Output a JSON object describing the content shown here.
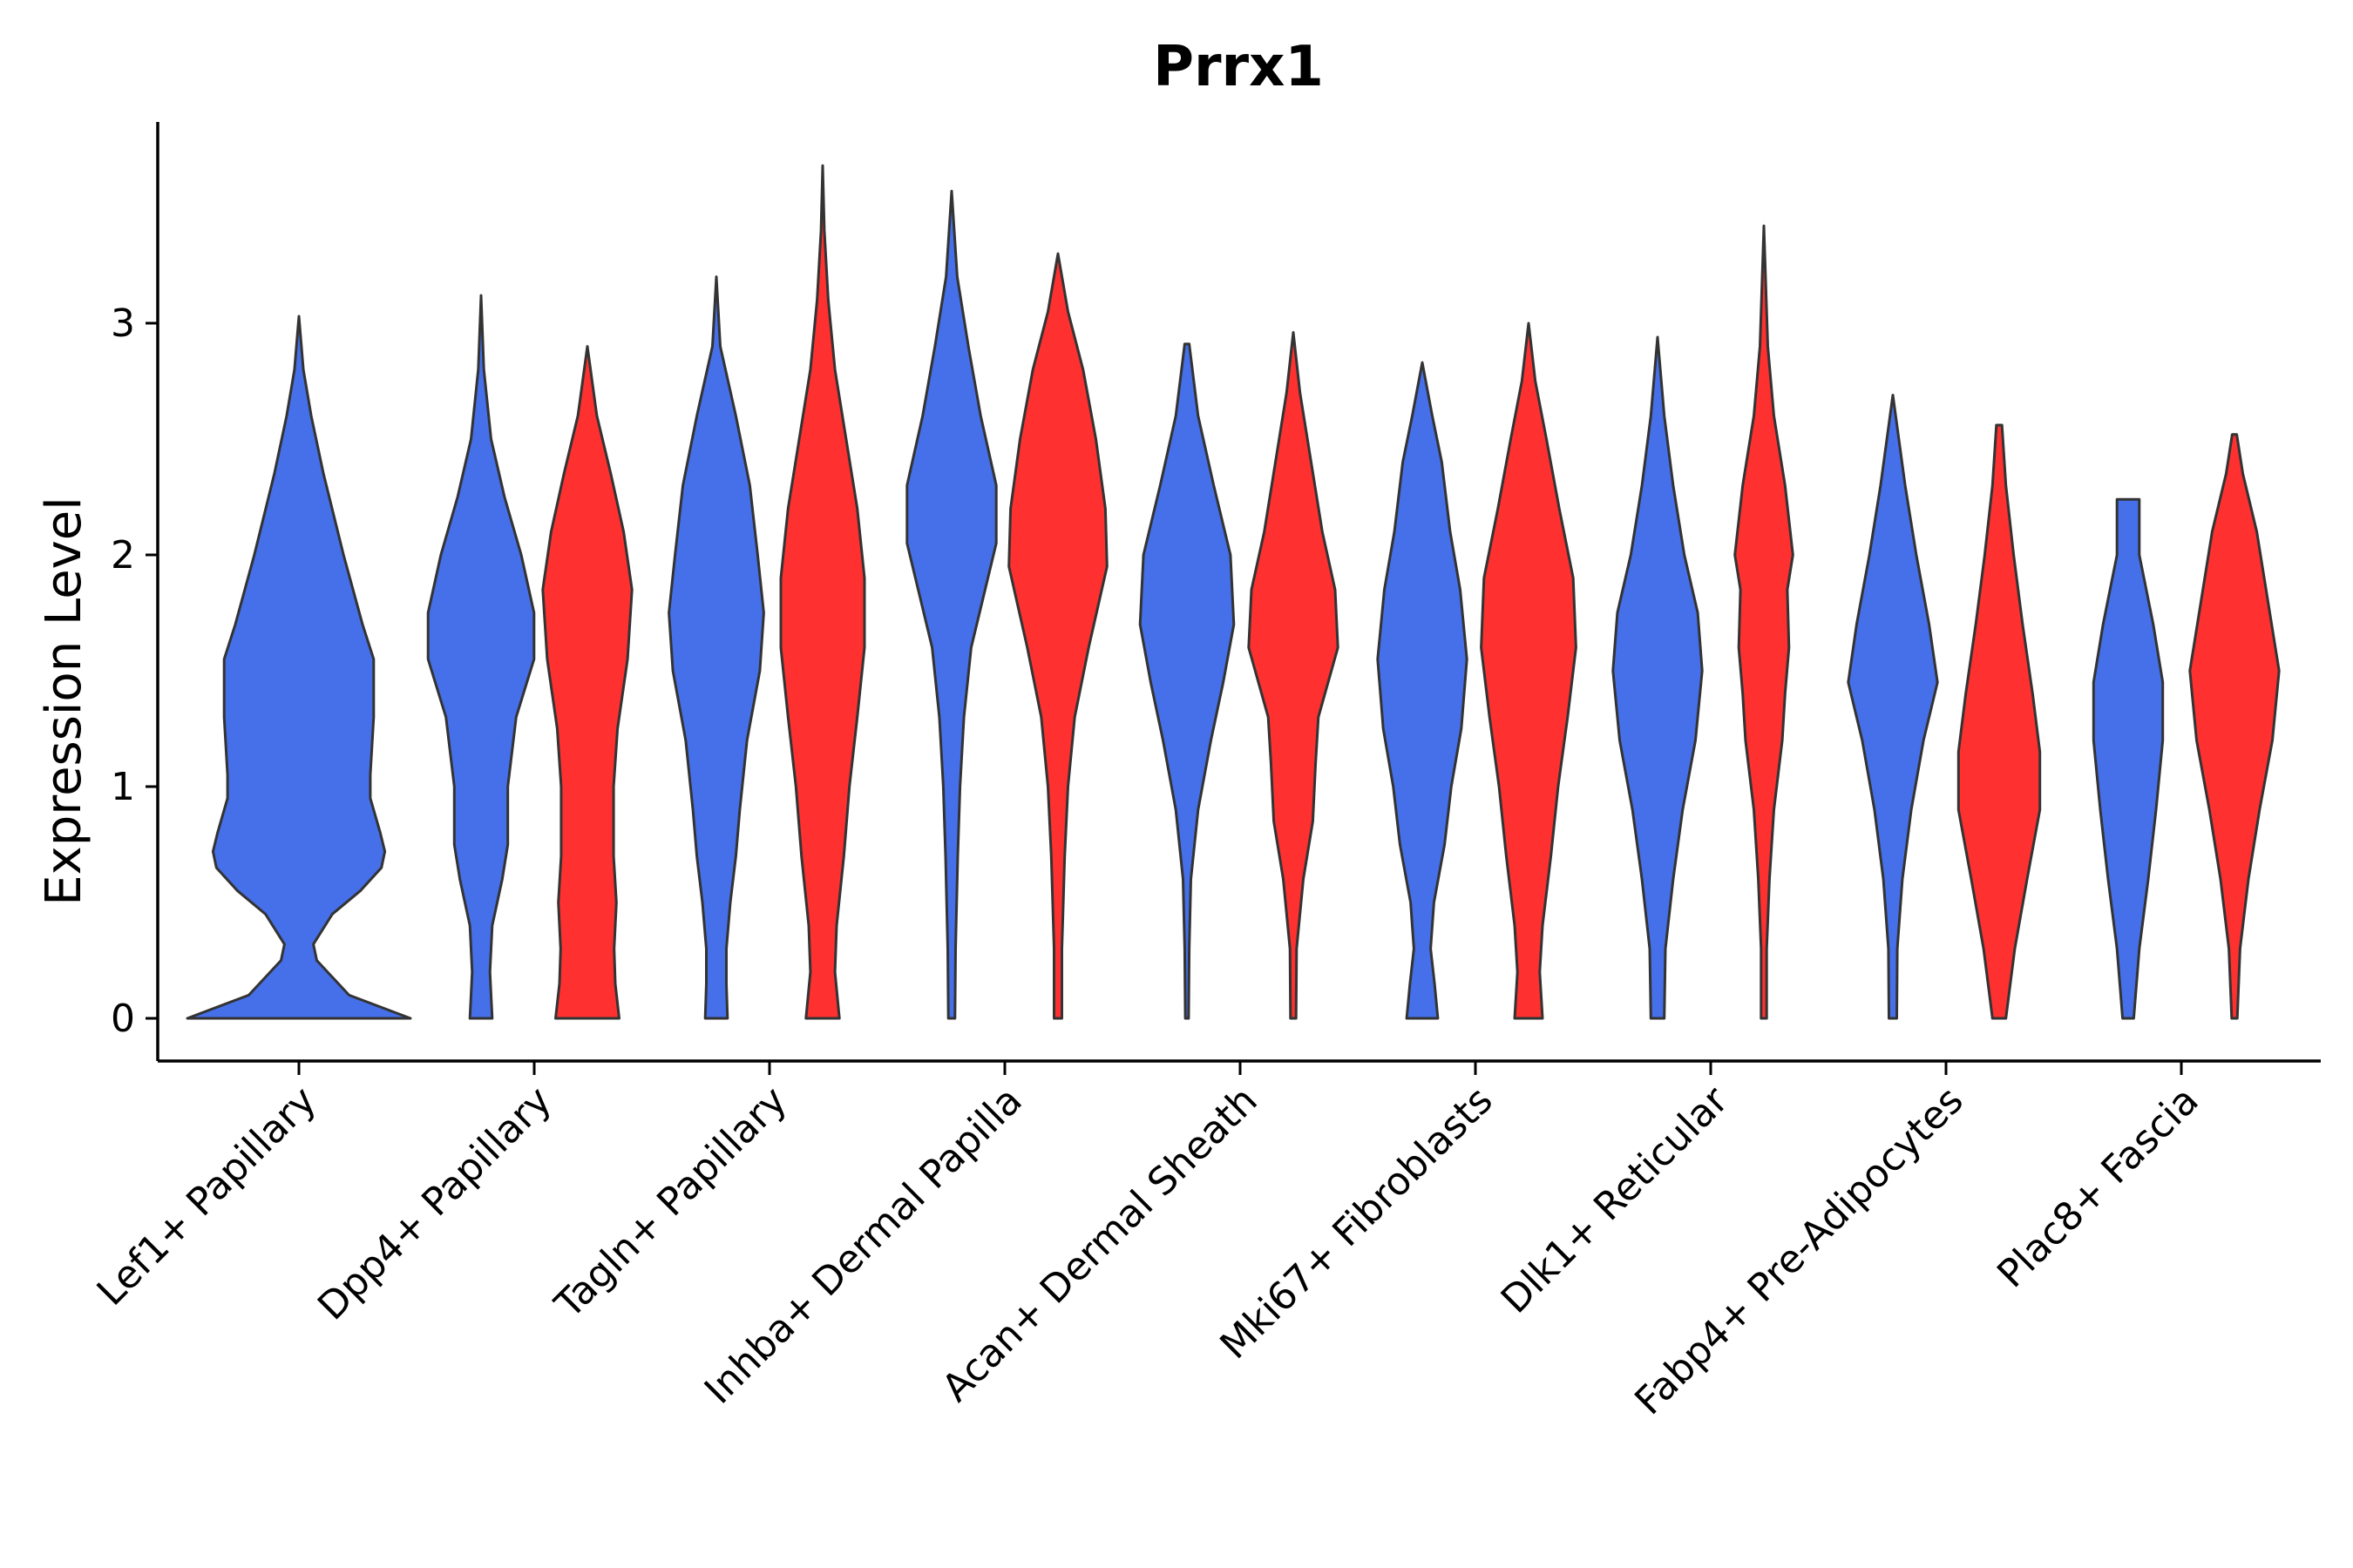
{
  "chart_data": {
    "type": "violin",
    "title": "Prrx1",
    "xlabel": "",
    "ylabel": "Expression Level",
    "ylim": [
      -0.18,
      3.88
    ],
    "yticks": [
      0,
      1,
      2,
      3
    ],
    "grid": false,
    "legend": "none",
    "categories": [
      "Lef1+ Papillary",
      "Dpp4+ Papillary",
      "Tagln+ Papillary",
      "Inhba+ Dermal Papilla",
      "Acan+ Dermal Sheath",
      "Mki67+ Fibroblasts",
      "Dlk1+ Reticular",
      "Fabp4+ Pre-Adipocytes",
      "Plac8+ Fascia"
    ],
    "series_colors": {
      "blue": "#4570EA",
      "red": "#FF3030",
      "outline": "#333333"
    },
    "violins": [
      {
        "category": "Lef1+ Papillary",
        "group": "blue",
        "offset": 0,
        "scale": 1.0,
        "max": 3.03,
        "profile": [
          [
            0,
            1.0
          ],
          [
            0.1,
            0.45
          ],
          [
            0.25,
            0.16
          ],
          [
            0.32,
            0.13
          ],
          [
            0.45,
            0.3
          ],
          [
            0.55,
            0.55
          ],
          [
            0.65,
            0.74
          ],
          [
            0.72,
            0.77
          ],
          [
            0.8,
            0.73
          ],
          [
            0.95,
            0.64
          ],
          [
            1.05,
            0.64
          ],
          [
            1.3,
            0.67
          ],
          [
            1.55,
            0.67
          ],
          [
            1.7,
            0.57
          ],
          [
            2.0,
            0.4
          ],
          [
            2.35,
            0.22
          ],
          [
            2.6,
            0.11
          ],
          [
            2.8,
            0.04
          ],
          [
            3.03,
            0.0
          ]
        ]
      },
      {
        "category": "Dpp4+ Papillary",
        "group": "blue",
        "offset": -1,
        "scale": 0.5,
        "max": 3.12,
        "profile": [
          [
            0,
            0.2
          ],
          [
            0.2,
            0.16
          ],
          [
            0.4,
            0.2
          ],
          [
            0.6,
            0.38
          ],
          [
            0.75,
            0.48
          ],
          [
            1.0,
            0.48
          ],
          [
            1.3,
            0.63
          ],
          [
            1.55,
            0.95
          ],
          [
            1.75,
            0.95
          ],
          [
            2.0,
            0.72
          ],
          [
            2.25,
            0.42
          ],
          [
            2.5,
            0.18
          ],
          [
            2.8,
            0.05
          ],
          [
            3.12,
            0.0
          ]
        ]
      },
      {
        "category": "Dpp4+ Papillary",
        "group": "red",
        "offset": 1,
        "scale": 0.5,
        "max": 2.9,
        "profile": [
          [
            0,
            0.57
          ],
          [
            0.15,
            0.5
          ],
          [
            0.3,
            0.48
          ],
          [
            0.5,
            0.52
          ],
          [
            0.7,
            0.47
          ],
          [
            1.0,
            0.47
          ],
          [
            1.25,
            0.54
          ],
          [
            1.55,
            0.72
          ],
          [
            1.85,
            0.8
          ],
          [
            2.1,
            0.65
          ],
          [
            2.35,
            0.42
          ],
          [
            2.6,
            0.17
          ],
          [
            2.9,
            0.0
          ]
        ]
      },
      {
        "category": "Tagln+ Papillary",
        "group": "blue",
        "offset": -1,
        "scale": 0.5,
        "max": 3.2,
        "profile": [
          [
            0,
            0.2
          ],
          [
            0.15,
            0.18
          ],
          [
            0.3,
            0.18
          ],
          [
            0.5,
            0.25
          ],
          [
            0.7,
            0.35
          ],
          [
            0.9,
            0.42
          ],
          [
            1.2,
            0.55
          ],
          [
            1.5,
            0.78
          ],
          [
            1.75,
            0.85
          ],
          [
            2.0,
            0.74
          ],
          [
            2.3,
            0.6
          ],
          [
            2.6,
            0.35
          ],
          [
            2.9,
            0.07
          ],
          [
            3.2,
            0.0
          ]
        ]
      },
      {
        "category": "Tagln+ Papillary",
        "group": "red",
        "offset": 1,
        "scale": 0.5,
        "max": 3.68,
        "profile": [
          [
            0,
            0.3
          ],
          [
            0.2,
            0.22
          ],
          [
            0.4,
            0.25
          ],
          [
            0.7,
            0.38
          ],
          [
            1.0,
            0.48
          ],
          [
            1.3,
            0.62
          ],
          [
            1.6,
            0.75
          ],
          [
            1.9,
            0.75
          ],
          [
            2.2,
            0.62
          ],
          [
            2.5,
            0.42
          ],
          [
            2.8,
            0.22
          ],
          [
            3.1,
            0.1
          ],
          [
            3.4,
            0.03
          ],
          [
            3.68,
            0.0
          ]
        ]
      },
      {
        "category": "Inhba+ Dermal Papilla",
        "group": "blue",
        "offset": -1,
        "scale": 0.5,
        "max": 3.57,
        "profile": [
          [
            0,
            0.06
          ],
          [
            0.3,
            0.07
          ],
          [
            0.7,
            0.11
          ],
          [
            1.0,
            0.15
          ],
          [
            1.3,
            0.22
          ],
          [
            1.6,
            0.35
          ],
          [
            1.85,
            0.6
          ],
          [
            2.05,
            0.8
          ],
          [
            2.3,
            0.8
          ],
          [
            2.6,
            0.52
          ],
          [
            2.9,
            0.3
          ],
          [
            3.2,
            0.1
          ],
          [
            3.57,
            0.0
          ]
        ]
      },
      {
        "category": "Inhba+ Dermal Papilla",
        "group": "red",
        "offset": 1,
        "scale": 0.5,
        "max": 3.3,
        "profile": [
          [
            0,
            0.07
          ],
          [
            0.3,
            0.07
          ],
          [
            0.7,
            0.12
          ],
          [
            1.0,
            0.18
          ],
          [
            1.3,
            0.3
          ],
          [
            1.6,
            0.55
          ],
          [
            1.95,
            0.88
          ],
          [
            2.2,
            0.85
          ],
          [
            2.5,
            0.68
          ],
          [
            2.8,
            0.45
          ],
          [
            3.05,
            0.18
          ],
          [
            3.3,
            0.0
          ]
        ]
      },
      {
        "category": "Acan+ Dermal Sheath",
        "group": "blue",
        "offset": -1,
        "scale": 0.5,
        "max": 2.91,
        "profile": [
          [
            0,
            0.03
          ],
          [
            0.3,
            0.04
          ],
          [
            0.6,
            0.07
          ],
          [
            0.9,
            0.2
          ],
          [
            1.2,
            0.43
          ],
          [
            1.45,
            0.65
          ],
          [
            1.7,
            0.84
          ],
          [
            2.0,
            0.78
          ],
          [
            2.3,
            0.48
          ],
          [
            2.6,
            0.2
          ],
          [
            2.91,
            0.04
          ]
        ]
      },
      {
        "category": "Acan+ Dermal Sheath",
        "group": "red",
        "offset": 1,
        "scale": 0.5,
        "max": 2.96,
        "profile": [
          [
            0,
            0.05
          ],
          [
            0.3,
            0.06
          ],
          [
            0.6,
            0.18
          ],
          [
            0.85,
            0.35
          ],
          [
            1.1,
            0.4
          ],
          [
            1.3,
            0.45
          ],
          [
            1.6,
            0.8
          ],
          [
            1.85,
            0.75
          ],
          [
            2.1,
            0.52
          ],
          [
            2.4,
            0.32
          ],
          [
            2.7,
            0.12
          ],
          [
            2.96,
            0.0
          ]
        ]
      },
      {
        "category": "Mki67+ Fibroblasts",
        "group": "blue",
        "offset": -1,
        "scale": 0.5,
        "max": 2.83,
        "profile": [
          [
            0,
            0.28
          ],
          [
            0.15,
            0.22
          ],
          [
            0.3,
            0.15
          ],
          [
            0.5,
            0.21
          ],
          [
            0.75,
            0.4
          ],
          [
            1.0,
            0.52
          ],
          [
            1.25,
            0.7
          ],
          [
            1.55,
            0.8
          ],
          [
            1.85,
            0.68
          ],
          [
            2.1,
            0.5
          ],
          [
            2.4,
            0.35
          ],
          [
            2.6,
            0.18
          ],
          [
            2.83,
            0.0
          ]
        ]
      },
      {
        "category": "Mki67+ Fibroblasts",
        "group": "red",
        "offset": 1,
        "scale": 0.5,
        "max": 3.0,
        "profile": [
          [
            0,
            0.25
          ],
          [
            0.2,
            0.2
          ],
          [
            0.4,
            0.25
          ],
          [
            0.7,
            0.4
          ],
          [
            1.0,
            0.53
          ],
          [
            1.3,
            0.7
          ],
          [
            1.6,
            0.85
          ],
          [
            1.9,
            0.8
          ],
          [
            2.2,
            0.55
          ],
          [
            2.5,
            0.32
          ],
          [
            2.75,
            0.12
          ],
          [
            3.0,
            0.0
          ]
        ]
      },
      {
        "category": "Dlk1+ Reticular",
        "group": "blue",
        "offset": -1,
        "scale": 0.5,
        "max": 2.94,
        "profile": [
          [
            0,
            0.12
          ],
          [
            0.3,
            0.14
          ],
          [
            0.6,
            0.28
          ],
          [
            0.9,
            0.45
          ],
          [
            1.2,
            0.68
          ],
          [
            1.5,
            0.8
          ],
          [
            1.75,
            0.72
          ],
          [
            2.0,
            0.48
          ],
          [
            2.3,
            0.28
          ],
          [
            2.6,
            0.12
          ],
          [
            2.94,
            0.0
          ]
        ]
      },
      {
        "category": "Dlk1+ Reticular",
        "group": "red",
        "offset": 1,
        "scale": 0.5,
        "max": 3.42,
        "profile": [
          [
            0,
            0.05
          ],
          [
            0.3,
            0.05
          ],
          [
            0.6,
            0.1
          ],
          [
            0.9,
            0.18
          ],
          [
            1.2,
            0.33
          ],
          [
            1.4,
            0.38
          ],
          [
            1.6,
            0.45
          ],
          [
            1.85,
            0.42
          ],
          [
            2.0,
            0.52
          ],
          [
            2.3,
            0.38
          ],
          [
            2.6,
            0.18
          ],
          [
            2.9,
            0.07
          ],
          [
            3.42,
            0.0
          ]
        ]
      },
      {
        "category": "Fabp4+ Pre-Adipocytes",
        "group": "blue",
        "offset": -1,
        "scale": 0.5,
        "max": 2.69,
        "profile": [
          [
            0,
            0.07
          ],
          [
            0.3,
            0.08
          ],
          [
            0.6,
            0.17
          ],
          [
            0.9,
            0.33
          ],
          [
            1.2,
            0.55
          ],
          [
            1.45,
            0.8
          ],
          [
            1.7,
            0.65
          ],
          [
            2.0,
            0.42
          ],
          [
            2.3,
            0.22
          ],
          [
            2.69,
            0.0
          ]
        ]
      },
      {
        "category": "Fabp4+ Pre-Adipocytes",
        "group": "red",
        "offset": 1,
        "scale": 0.5,
        "max": 2.56,
        "profile": [
          [
            0,
            0.12
          ],
          [
            0.3,
            0.28
          ],
          [
            0.6,
            0.5
          ],
          [
            0.9,
            0.73
          ],
          [
            1.15,
            0.73
          ],
          [
            1.4,
            0.6
          ],
          [
            1.7,
            0.42
          ],
          [
            2.0,
            0.26
          ],
          [
            2.3,
            0.12
          ],
          [
            2.56,
            0.05
          ]
        ]
      },
      {
        "category": "Plac8+ Fascia",
        "group": "blue",
        "offset": -1,
        "scale": 0.5,
        "max": 2.24,
        "profile": [
          [
            0,
            0.1
          ],
          [
            0.3,
            0.2
          ],
          [
            0.6,
            0.36
          ],
          [
            0.9,
            0.5
          ],
          [
            1.2,
            0.62
          ],
          [
            1.45,
            0.62
          ],
          [
            1.7,
            0.45
          ],
          [
            2.0,
            0.2
          ],
          [
            2.24,
            0.2
          ]
        ]
      },
      {
        "category": "Plac8+ Fascia",
        "group": "red",
        "offset": 1,
        "scale": 0.5,
        "max": 2.52,
        "profile": [
          [
            0,
            0.05
          ],
          [
            0.3,
            0.1
          ],
          [
            0.6,
            0.25
          ],
          [
            0.9,
            0.45
          ],
          [
            1.2,
            0.68
          ],
          [
            1.5,
            0.8
          ],
          [
            1.8,
            0.6
          ],
          [
            2.1,
            0.4
          ],
          [
            2.35,
            0.15
          ],
          [
            2.52,
            0.04
          ]
        ]
      }
    ]
  }
}
